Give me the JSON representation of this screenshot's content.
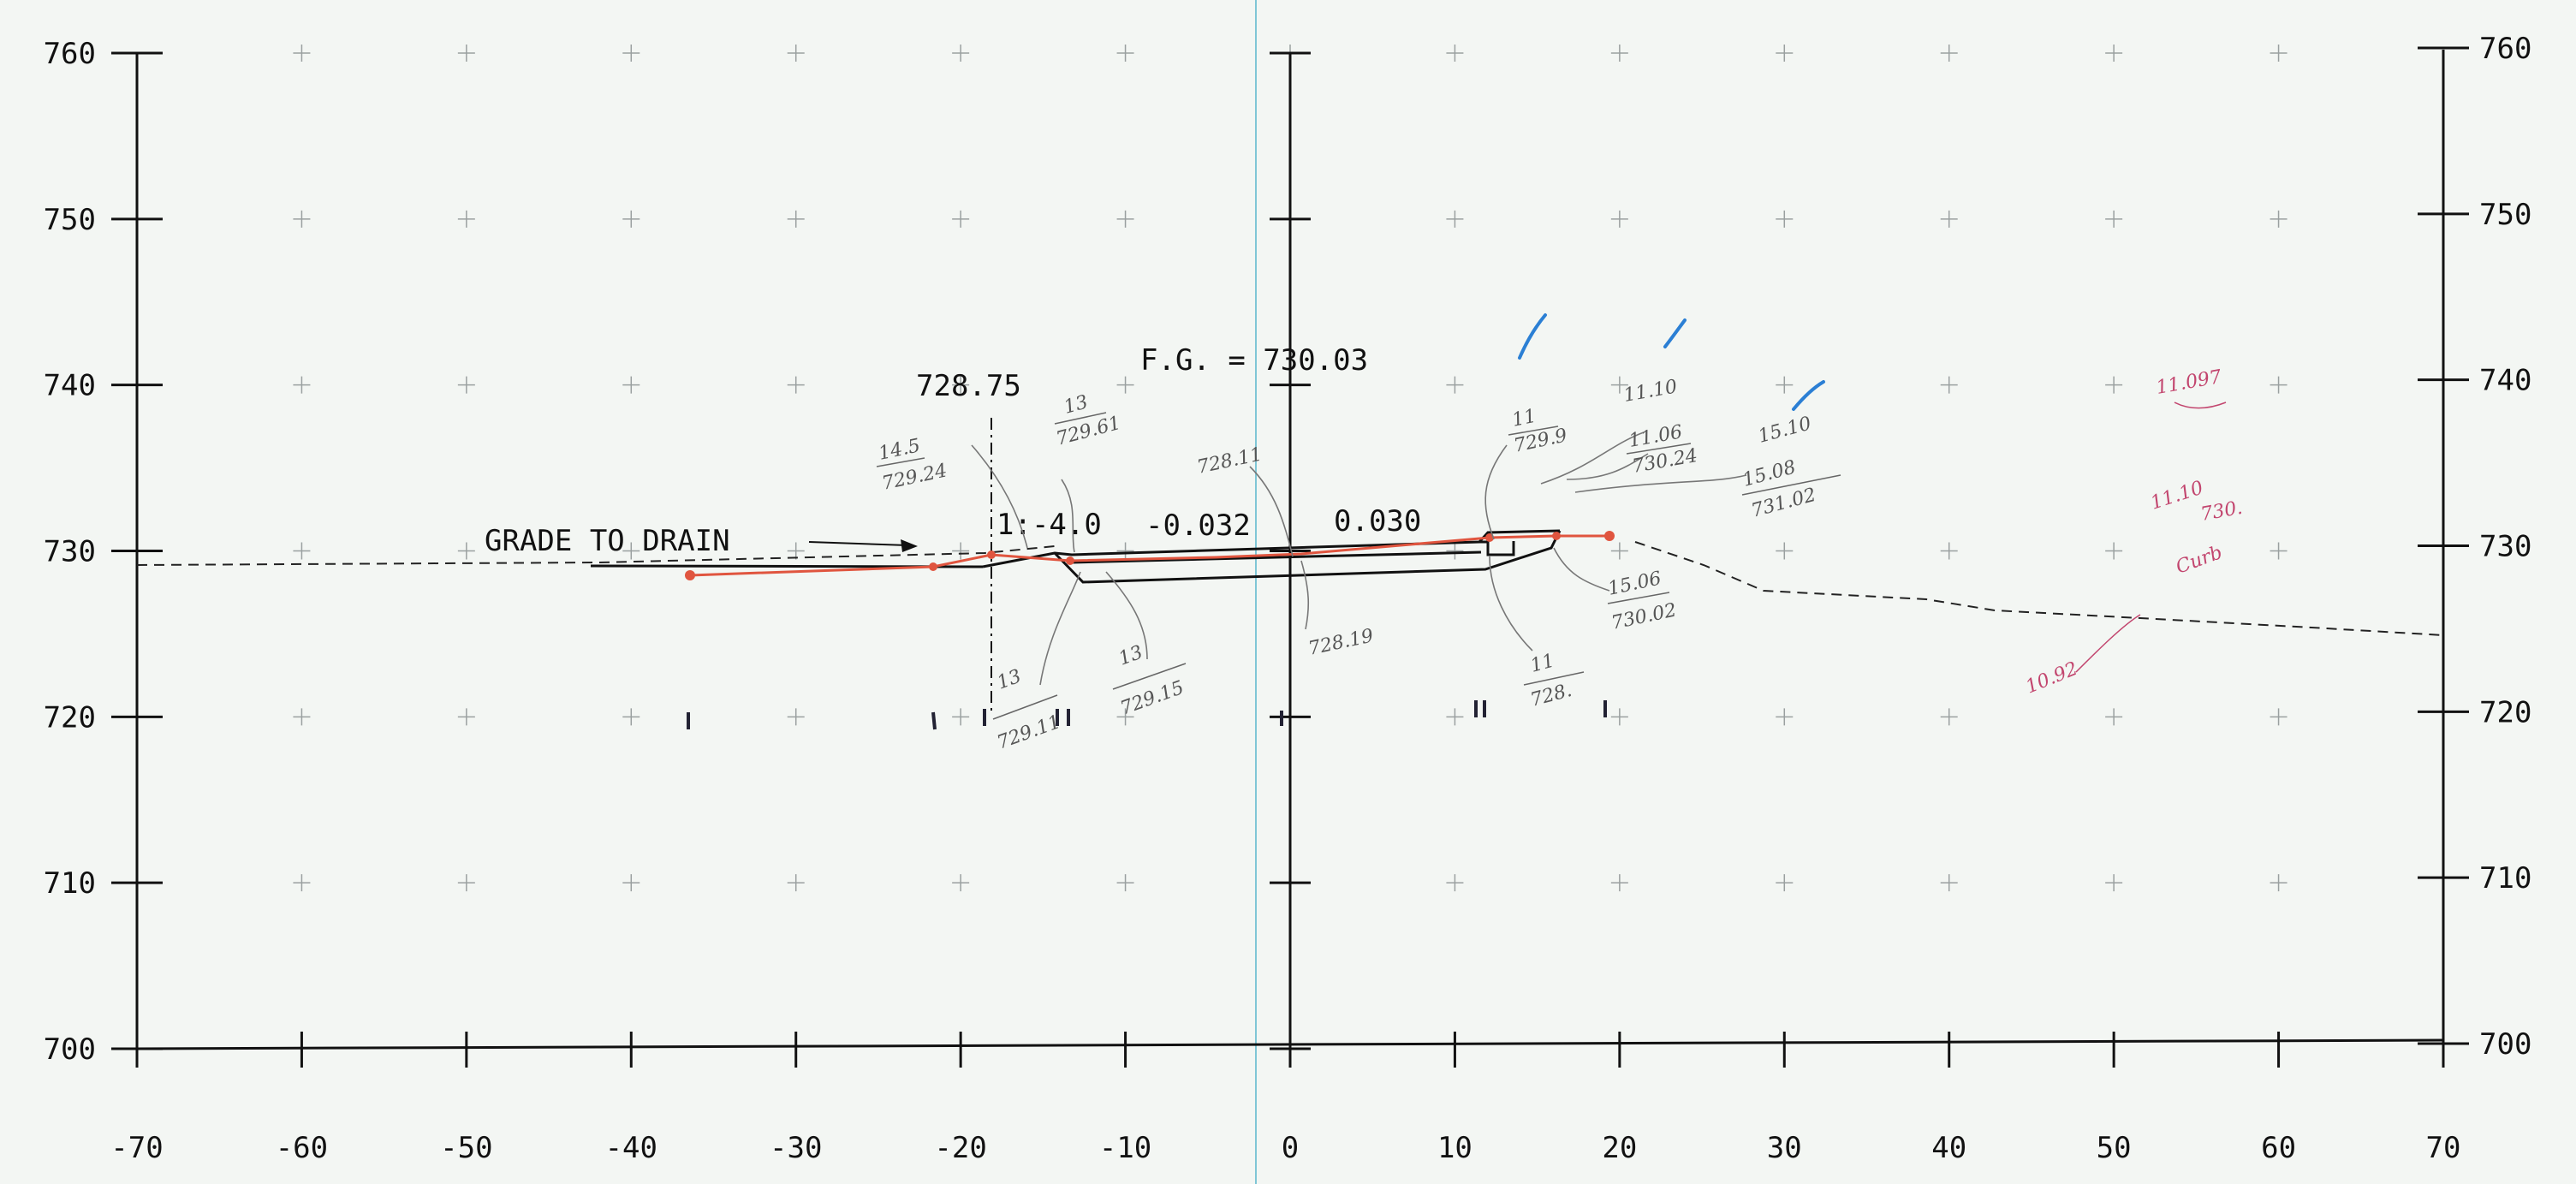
{
  "axes": {
    "x_ticks": [
      "-70",
      "-60",
      "-50",
      "-40",
      "-30",
      "-20",
      "-10",
      "0",
      "10",
      "20",
      "30",
      "40",
      "50",
      "60",
      "70"
    ],
    "y_ticks_left": [
      "760",
      "750",
      "740",
      "730",
      "720",
      "710",
      "700"
    ],
    "y_ticks_right": [
      "760",
      "750",
      "740",
      "730",
      "720",
      "710",
      "700"
    ],
    "x_range": [
      -70,
      70
    ],
    "y_range": [
      700,
      760
    ]
  },
  "printed_labels": {
    "fg": "F.G.  = 730.03",
    "elev_left": "728.75",
    "grade_note": "GRADE TO DRAIN",
    "slope_ratio": "1:-4.0",
    "slope_left": "-0.032",
    "slope_right": "0.030"
  },
  "handwritten": {
    "n1": "14.5",
    "n1b": "729.24",
    "n2": "13",
    "n2b": "729.61",
    "n3": "728.11",
    "n4": "13",
    "n4b": "729.11",
    "n5": "13",
    "n5b": "729.15",
    "n6": "728.19",
    "n7": "11",
    "n7b": "729.9",
    "n8": "11.10",
    "n9": "11.06",
    "n9b": "730.24",
    "n10": "15.10",
    "n11": "15.08",
    "n11b": "731.02",
    "n12": "15.06",
    "n12b": "730.02",
    "n13": "11",
    "n13b": "728.",
    "p1": "11.097",
    "p2": "11.10",
    "p3": "730.",
    "p4": "Curb",
    "p5": "10.92"
  },
  "colors": {
    "grid": "#9aa0a0",
    "ink": "#111111",
    "survey_red": "#e0553f",
    "pencil": "#666666",
    "pink": "#c2456e",
    "blue_mark": "#2b7fd4",
    "center_line": "#7fc6d6"
  }
}
